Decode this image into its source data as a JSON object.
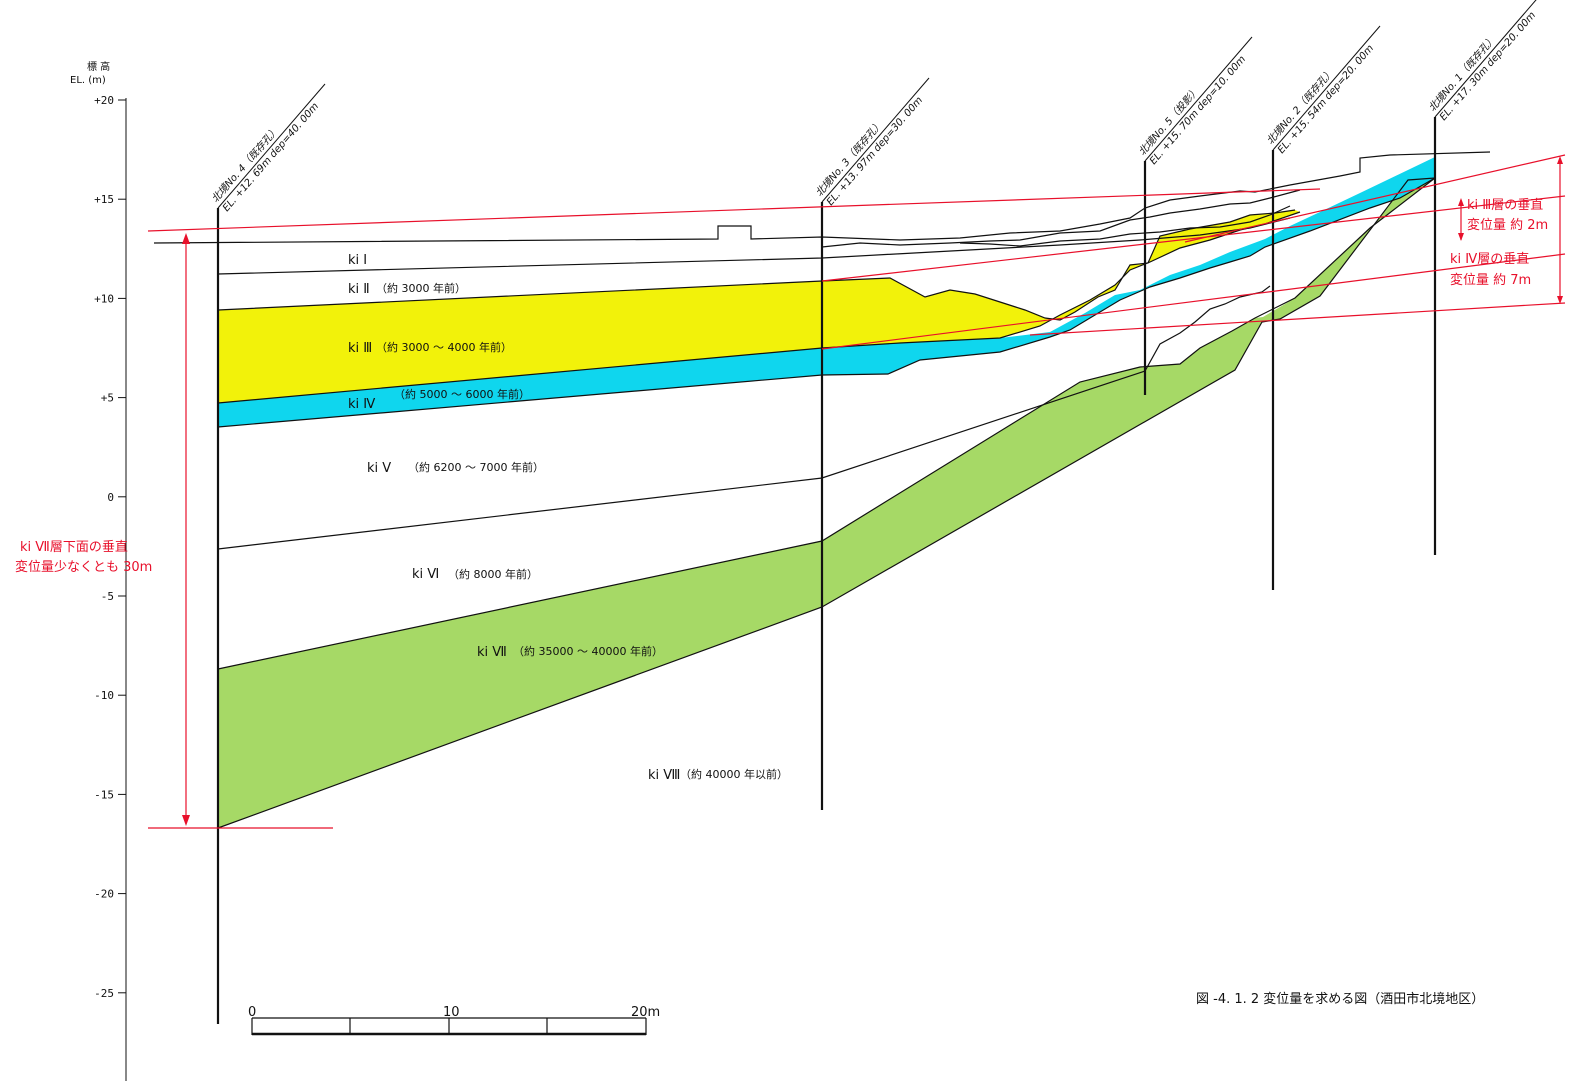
{
  "axis": {
    "label_line1": "標 高",
    "label_line2": "EL. (m)",
    "ticks": [
      "+20",
      "+15",
      "+10",
      "+5",
      "0",
      "-5",
      "-10",
      "-15",
      "-20",
      "-25"
    ]
  },
  "boreholes": [
    {
      "name": "北境No. 4（既存孔）",
      "elev": "EL. +12. 69m  dep=40. 00m"
    },
    {
      "name": "北境No. 3（既存孔）",
      "elev": "EL. +13. 97m  dep=30. 00m"
    },
    {
      "name": "北境No. 5（投影）",
      "elev": "EL. +15. 70m  dep=10. 00m"
    },
    {
      "name": "北境No. 2（既存孔）",
      "elev": "EL. +15. 54m  dep=20. 00m"
    },
    {
      "name": "北境No. 1（既存孔）",
      "elev": "EL. +17. 30m  dep=20. 00m"
    }
  ],
  "layers": [
    {
      "id": "ki1",
      "label": "ki Ⅰ",
      "age": ""
    },
    {
      "id": "ki2",
      "label": "ki Ⅱ",
      "age": "（約 3000 年前）"
    },
    {
      "id": "ki3",
      "label": "ki Ⅲ",
      "age": "（約 3000 ～ 4000 年前）",
      "color": "#f2f20a"
    },
    {
      "id": "ki4",
      "label": "ki Ⅳ",
      "age": "（約 5000 ～ 6000 年前）",
      "color": "#0fd6ee"
    },
    {
      "id": "ki5",
      "label": "ki Ⅴ",
      "age": "（約 6200 ～ 7000 年前）"
    },
    {
      "id": "ki6",
      "label": "ki Ⅵ",
      "age": "（約 8000 年前）"
    },
    {
      "id": "ki7",
      "label": "ki Ⅶ",
      "age": "（約 35000 ～ 40000 年前）",
      "color": "#a6d966"
    },
    {
      "id": "ki8",
      "label": "ki Ⅷ",
      "age": "（約 40000 年以前）"
    }
  ],
  "annotations": {
    "ki3_line1": "ki Ⅲ層の垂直",
    "ki3_line2": "変位量  約 2m",
    "ki4_line1": "ki Ⅳ層の垂直",
    "ki4_line2": "変位量  約 7m",
    "ki7_line1": "ki Ⅶ層下面の垂直",
    "ki7_line2": "変位量少なくとも 30m",
    "accent_color": "#e8102b"
  },
  "scale_bar": {
    "labels": [
      "0",
      "10",
      "20m"
    ]
  },
  "caption": "図 -4. 1. 2 変位量を求める図（酒田市北境地区）"
}
